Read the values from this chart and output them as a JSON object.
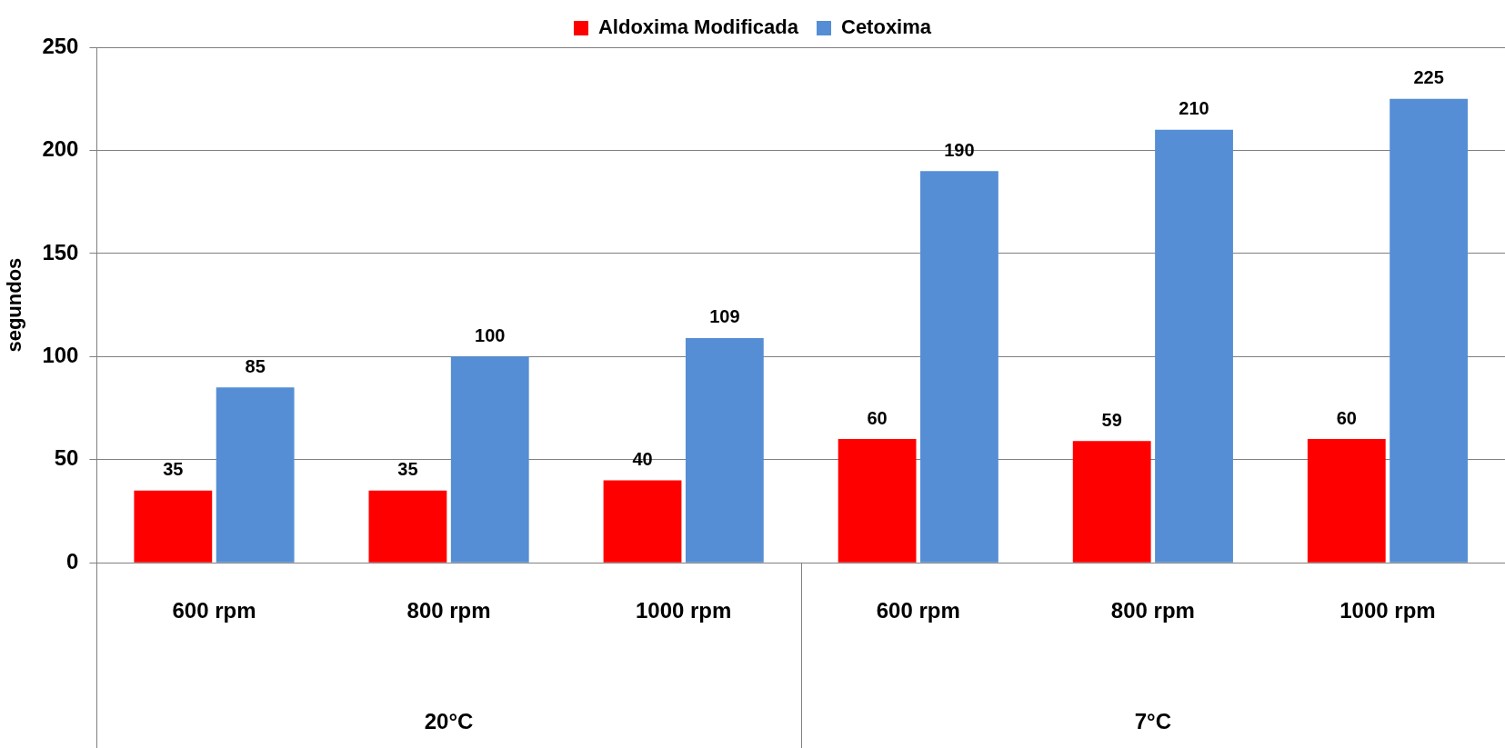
{
  "chart_data": {
    "type": "bar",
    "ylabel": "segundos",
    "categories": [
      "600 rpm",
      "800 rpm",
      "1000 rpm",
      "600 rpm",
      "800 rpm",
      "1000 rpm"
    ],
    "annotations": [
      "20°C",
      "7°C"
    ],
    "series": [
      {
        "name": "Aldoxima Modificada",
        "color": "#ff0000",
        "values": [
          35,
          35,
          40,
          60,
          59,
          60
        ]
      },
      {
        "name": "Cetoxima",
        "color": "#558ed5",
        "values": [
          85,
          100,
          109,
          190,
          210,
          225
        ]
      }
    ],
    "ylim": [
      0,
      250
    ],
    "yticks": [
      0,
      50,
      100,
      150,
      200,
      250
    ],
    "grid": "y",
    "legend": "top",
    "data_labels": true
  }
}
